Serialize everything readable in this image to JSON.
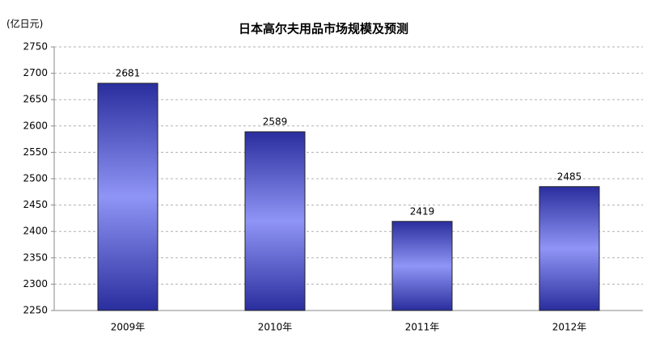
{
  "chart_data": {
    "type": "bar",
    "title": "日本高尔夫用品市场规模及预测",
    "ylabel": "(亿日元)",
    "categories": [
      "2009年",
      "2010年",
      "2011年",
      "2012年"
    ],
    "values": [
      2681,
      2589,
      2419,
      2485
    ],
    "color": "#2a2e9e",
    "ylim": [
      2250,
      2750
    ],
    "yticks": [
      2250,
      2300,
      2350,
      2400,
      2450,
      2500,
      2550,
      2600,
      2650,
      2700,
      2750
    ],
    "grid": true
  }
}
